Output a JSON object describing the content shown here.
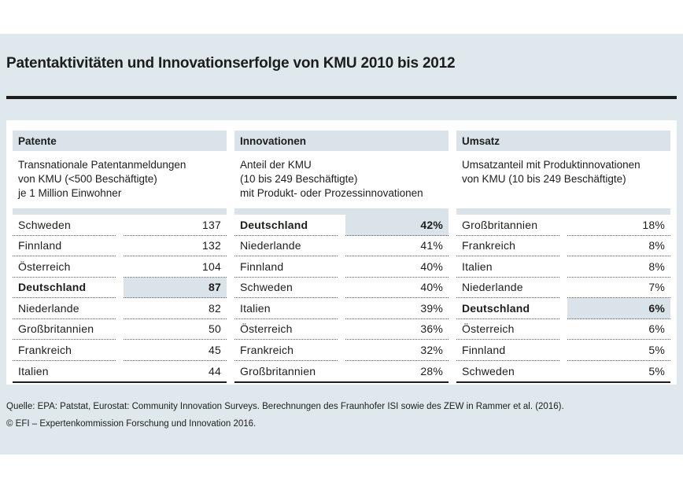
{
  "title": "Patentaktivitäten und Innovationserfolge von KMU 2010 bis 2012",
  "columns": [
    {
      "header": "Patente",
      "desc_lines": [
        "Transnationale Patentanmeldungen",
        "von KMU (<500 Beschäftigte)",
        "je 1 Million Einwohner"
      ],
      "rows": [
        {
          "country": "Schweden",
          "value": "137"
        },
        {
          "country": "Finnland",
          "value": "132"
        },
        {
          "country": "Österreich",
          "value": "104"
        },
        {
          "country": "Deutschland",
          "value": "87",
          "highlighted": true
        },
        {
          "country": "Niederlande",
          "value": "82"
        },
        {
          "country": "Großbritannien",
          "value": "50"
        },
        {
          "country": "Frankreich",
          "value": "45"
        },
        {
          "country": "Italien",
          "value": "44"
        }
      ]
    },
    {
      "header": "Innovationen",
      "desc_lines": [
        "Anteil der KMU",
        "(10 bis 249 Beschäftigte)",
        "mit Produkt- oder Prozessinnovationen"
      ],
      "rows": [
        {
          "country": "Deutschland",
          "value": "42%",
          "highlighted": true
        },
        {
          "country": "Niederlande",
          "value": "41%"
        },
        {
          "country": "Finnland",
          "value": "40%"
        },
        {
          "country": "Schweden",
          "value": "40%"
        },
        {
          "country": "Italien",
          "value": "39%"
        },
        {
          "country": "Österreich",
          "value": "36%"
        },
        {
          "country": "Frankreich",
          "value": "32%"
        },
        {
          "country": "Großbritannien",
          "value": "28%"
        }
      ]
    },
    {
      "header": "Umsatz",
      "desc_lines": [
        "Umsatzanteil mit Produktinnovationen",
        "von KMU (10 bis 249 Beschäftigte)"
      ],
      "rows": [
        {
          "country": "Großbritannien",
          "value": "18%"
        },
        {
          "country": "Frankreich",
          "value": "8%"
        },
        {
          "country": "Italien",
          "value": "8%"
        },
        {
          "country": "Niederlande",
          "value": "7%"
        },
        {
          "country": "Deutschland",
          "value": "6%",
          "highlighted": true
        },
        {
          "country": "Österreich",
          "value": "6%"
        },
        {
          "country": "Finnland",
          "value": "5%"
        },
        {
          "country": "Schweden",
          "value": "5%"
        }
      ]
    }
  ],
  "footer": {
    "source": "Quelle: EPA: Patstat, Eurostat: Community Innovation Surveys. Berechnungen des Fraunhofer ISI sowie des ZEW in Rammer et al. (2016).",
    "copyright": "© EFI – Expertenkommission Forschung und Innovation 2016."
  },
  "chart_data": [
    {
      "type": "table",
      "title": "Patente",
      "subtitle": "Transnationale Patentanmeldungen von KMU (<500 Beschäftigte) je 1 Million Einwohner",
      "categories": [
        "Schweden",
        "Finnland",
        "Österreich",
        "Deutschland",
        "Niederlande",
        "Großbritannien",
        "Frankreich",
        "Italien"
      ],
      "values": [
        137,
        132,
        104,
        87,
        82,
        50,
        45,
        44
      ],
      "unit": "",
      "highlighted_category": "Deutschland"
    },
    {
      "type": "table",
      "title": "Innovationen",
      "subtitle": "Anteil der KMU (10 bis 249 Beschäftigte) mit Produkt- oder Prozessinnovationen",
      "categories": [
        "Deutschland",
        "Niederlande",
        "Finnland",
        "Schweden",
        "Italien",
        "Österreich",
        "Frankreich",
        "Großbritannien"
      ],
      "values": [
        42,
        41,
        40,
        40,
        39,
        36,
        32,
        28
      ],
      "unit": "%",
      "highlighted_category": "Deutschland"
    },
    {
      "type": "table",
      "title": "Umsatz",
      "subtitle": "Umsatzanteil mit Produktinnovationen von KMU (10 bis 249 Beschäftigte)",
      "categories": [
        "Großbritannien",
        "Frankreich",
        "Italien",
        "Niederlande",
        "Deutschland",
        "Österreich",
        "Finnland",
        "Schweden"
      ],
      "values": [
        18,
        8,
        8,
        7,
        6,
        6,
        5,
        5
      ],
      "unit": "%",
      "highlighted_category": "Deutschland"
    }
  ],
  "colors": {
    "panel": "#dfe8ed",
    "band": "#d9e3e9",
    "highlight": "#d9e3e9",
    "rule": "#1d1d1b",
    "text": "#1d1d1b",
    "dotted": "#5a5e61"
  }
}
